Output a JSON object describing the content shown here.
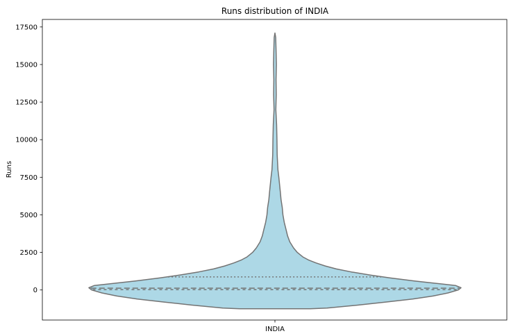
{
  "chart_data": {
    "type": "violin",
    "title": "Runs distribution of INDIA",
    "xlabel": "",
    "ylabel": "Runs",
    "categories": [
      "INDIA"
    ],
    "ylim": [
      -2000,
      18000
    ],
    "yticks": [
      0,
      2500,
      5000,
      7500,
      10000,
      12500,
      15000,
      17500
    ],
    "ytick_labels": [
      "0",
      "2500",
      "5000",
      "7500",
      "10000",
      "12500",
      "15000",
      "17500"
    ],
    "grid": false,
    "colors": {
      "fill": "#add8e6",
      "stroke": "#737373",
      "quartile": "#737373"
    },
    "violin": {
      "category": "INDIA",
      "min": -1250,
      "max": 17100,
      "quartiles": [
        20,
        120,
        870
      ],
      "half_width_fraction": [
        [
          -1250,
          0.19
        ],
        [
          -1200,
          0.28
        ],
        [
          -1000,
          0.45
        ],
        [
          -800,
          0.6
        ],
        [
          -600,
          0.74
        ],
        [
          -400,
          0.85
        ],
        [
          -200,
          0.93
        ],
        [
          0,
          0.985
        ],
        [
          150,
          1.0
        ],
        [
          300,
          0.97
        ],
        [
          450,
          0.86
        ],
        [
          600,
          0.75
        ],
        [
          800,
          0.62
        ],
        [
          1000,
          0.51
        ],
        [
          1200,
          0.41
        ],
        [
          1400,
          0.33
        ],
        [
          1600,
          0.27
        ],
        [
          1800,
          0.22
        ],
        [
          2000,
          0.18
        ],
        [
          2200,
          0.15
        ],
        [
          2500,
          0.12
        ],
        [
          2800,
          0.1
        ],
        [
          3200,
          0.08
        ],
        [
          3600,
          0.068
        ],
        [
          4000,
          0.06
        ],
        [
          4500,
          0.05
        ],
        [
          5000,
          0.043
        ],
        [
          5500,
          0.039
        ],
        [
          6000,
          0.033
        ],
        [
          6500,
          0.029
        ],
        [
          7000,
          0.025
        ],
        [
          7500,
          0.021
        ],
        [
          8000,
          0.016
        ],
        [
          9000,
          0.012
        ],
        [
          10000,
          0.011
        ],
        [
          11000,
          0.009
        ],
        [
          12000,
          0.005
        ],
        [
          13000,
          0.007
        ],
        [
          14000,
          0.006
        ],
        [
          15000,
          0.008
        ],
        [
          16000,
          0.006
        ],
        [
          16800,
          0.004
        ],
        [
          17100,
          0.0
        ]
      ]
    }
  }
}
